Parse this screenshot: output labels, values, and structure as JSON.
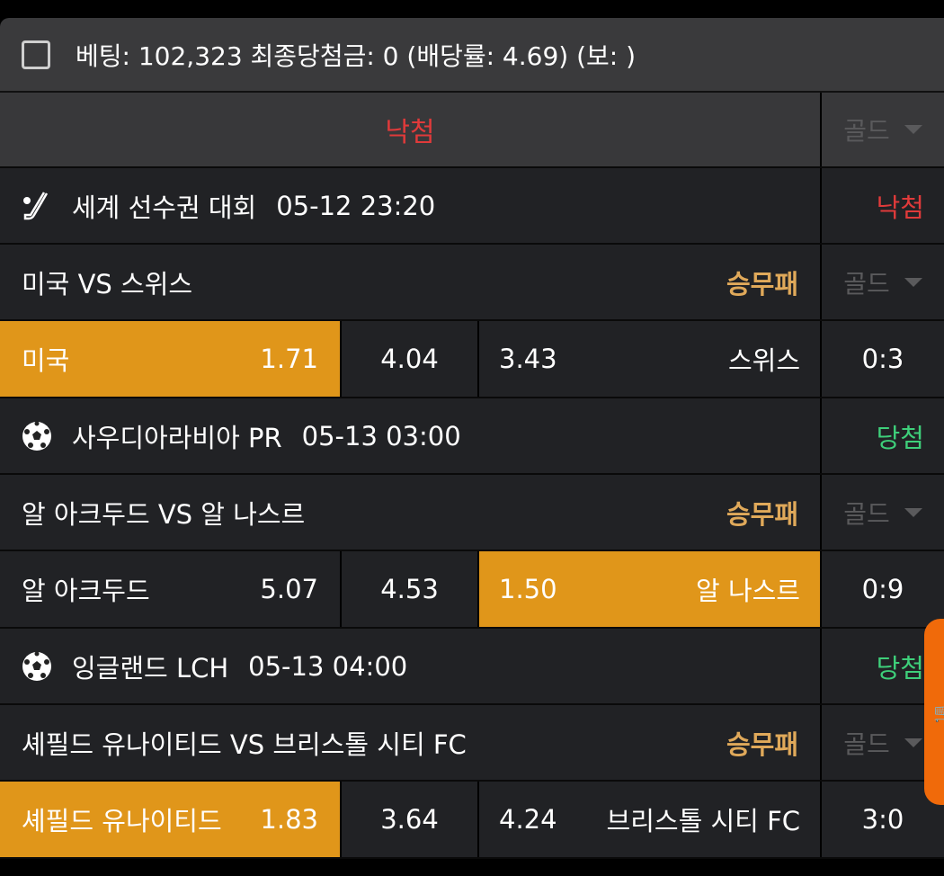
{
  "header": {
    "summary": "베팅: 102,323 최종당첨금: 0 (배당률: 4.69) (보: )"
  },
  "status_row": {
    "result": "낙첨",
    "filter": "골드"
  },
  "colors": {
    "selected": "#e0961a",
    "lose": "#e03a3a",
    "win": "#3ecf7a",
    "market": "#e0a95a",
    "cart": "#f06a0a"
  },
  "games": [
    {
      "icon": "hockey-icon",
      "league": "세계 선수권 대회",
      "time": "05-12 23:20",
      "result": "낙첨",
      "result_type": "lose",
      "match": "미국 VS 스위스",
      "market": "승무패",
      "filter": "골드",
      "home": "미국",
      "home_odds": "1.71",
      "draw_odds": "4.04",
      "away_odds": "3.43",
      "away": "스위스",
      "score": "0:3",
      "selected": "home"
    },
    {
      "icon": "soccer-ball-icon",
      "league": "사우디아라비아 PR",
      "time": "05-13 03:00",
      "result": "당첨",
      "result_type": "win",
      "match": "알 아크두드 VS 알 나스르",
      "market": "승무패",
      "filter": "골드",
      "home": "알 아크두드",
      "home_odds": "5.07",
      "draw_odds": "4.53",
      "away_odds": "1.50",
      "away": "알 나스르",
      "score": "0:9",
      "selected": "away"
    },
    {
      "icon": "soccer-ball-icon",
      "league": "잉글랜드 LCH",
      "time": "05-13 04:00",
      "result": "당첨",
      "result_type": "win",
      "match": "셰필드 유나이티드 VS 브리스톨 시티 FC",
      "market": "승무패",
      "filter": "골드",
      "home": "셰필드 유나이티드",
      "home_odds": "1.83",
      "draw_odds": "3.64",
      "away_odds": "4.24",
      "away": "브리스톨 시티 FC",
      "score": "3:0",
      "selected": "home"
    }
  ],
  "cart": {
    "icon": "cart-icon"
  }
}
